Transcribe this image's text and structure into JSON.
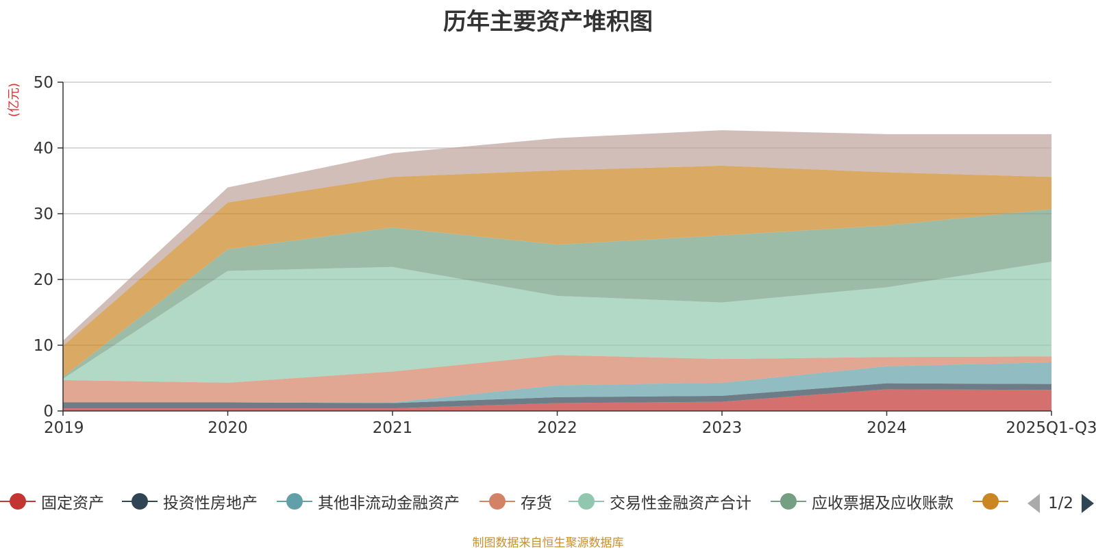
{
  "chart_data": {
    "type": "area",
    "stacked": true,
    "title": "历年主要资产堆积图",
    "ylabel": "(亿元)",
    "xlabel": "",
    "ylim": [
      0,
      50
    ],
    "yticks": [
      0,
      10,
      20,
      30,
      40,
      50
    ],
    "categories": [
      "2019",
      "2020",
      "2021",
      "2022",
      "2023",
      "2024",
      "2025Q1-Q3"
    ],
    "grid": true,
    "legend_position": "bottom",
    "series": [
      {
        "name": "固定资产",
        "color": "#c23531",
        "values": [
          0.4,
          0.4,
          0.4,
          1.2,
          1.4,
          3.3,
          3.2
        ]
      },
      {
        "name": "投资性房地产",
        "color": "#2f4554",
        "values": [
          0.9,
          0.9,
          0.8,
          0.9,
          0.9,
          0.9,
          0.9
        ]
      },
      {
        "name": "其他非流动金融资产",
        "color": "#61a0a8",
        "values": [
          0.0,
          0.0,
          0.1,
          1.8,
          2.0,
          2.6,
          3.3
        ]
      },
      {
        "name": "存货",
        "color": "#d48265",
        "values": [
          3.4,
          3.0,
          4.7,
          4.6,
          3.6,
          1.4,
          0.9
        ]
      },
      {
        "name": "交易性金融资产合计",
        "color": "#91c7ae",
        "values": [
          0.2,
          17.0,
          15.9,
          9.0,
          8.6,
          10.6,
          14.4
        ]
      },
      {
        "name": "应收票据及应收账款",
        "color": "#749f83",
        "values": [
          0.3,
          3.3,
          6.0,
          7.8,
          10.2,
          9.4,
          8.0
        ]
      },
      {
        "name": "",
        "color": "#ca8622",
        "values": [
          4.7,
          7.1,
          7.7,
          11.3,
          10.6,
          8.1,
          4.9
        ]
      },
      {
        "name": "",
        "color": "#bda29a",
        "values": [
          0.8,
          2.3,
          3.6,
          4.9,
          5.4,
          5.8,
          6.5
        ]
      }
    ],
    "legend_labels": [
      "固定资产",
      "投资性房地产",
      "其他非流动金融资产",
      "存货",
      "交易性金融资产合计",
      "应收票据及应收账款",
      ""
    ]
  },
  "legend_pager": "1/2",
  "source_note": "制图数据来自恒生聚源数据库"
}
